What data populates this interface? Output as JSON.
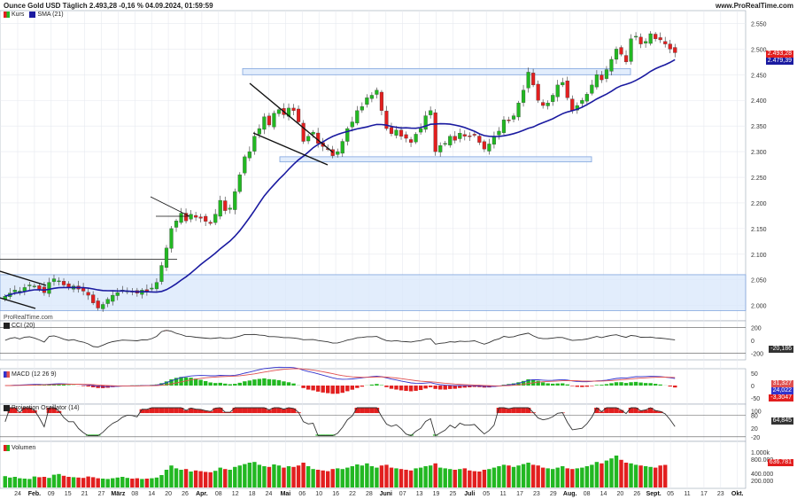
{
  "header": {
    "title": "Ounce Gold USD Täglich 2.493,28 -0,16 % 04.09.2024, 01:59:59",
    "source": "www.ProRealTime.com",
    "watermark": "ProRealTime.com"
  },
  "legend": {
    "kurs": "Kurs",
    "sma": "SMA (21)",
    "cci": "CCI (20)",
    "macd": "MACD (12 26 9)",
    "proj": "Projection Oszillator (14)",
    "vol": "Volumen"
  },
  "colors": {
    "up": "#22b822",
    "down": "#e21f1f",
    "sma": "#1a1aa0",
    "zone": "#dbe8fb",
    "zone_border": "#7fa4dd",
    "macd_line": "#3333cc",
    "signal_line": "#e05050"
  },
  "price_labels": {
    "last": "2.493,28",
    "sma": "2.479,39"
  },
  "indicator_labels": {
    "cci_last": "-20,186",
    "macd_a": "31,327",
    "macd_b": "24,022",
    "macd_c": "-3,3047",
    "proj_last": "64,845",
    "vol_last": "636.781"
  },
  "chart_data": {
    "type": "candlestick",
    "x_labels": [
      "24",
      "Feb.",
      "09",
      "15",
      "21",
      "27",
      "März",
      "08",
      "14",
      "20",
      "26",
      "Apr.",
      "08",
      "12",
      "18",
      "24",
      "Mai",
      "06",
      "10",
      "16",
      "22",
      "28",
      "Juni",
      "07",
      "13",
      "19",
      "25",
      "Juli",
      "05",
      "11",
      "17",
      "23",
      "29",
      "Aug.",
      "08",
      "14",
      "20",
      "26",
      "Sept.",
      "05",
      "11",
      "17",
      "23",
      "Okt."
    ],
    "price_axis": {
      "ticks": [
        "2.550",
        "2.500",
        "2.450",
        "2.400",
        "2.350",
        "2.300",
        "2.250",
        "2.200",
        "2.150",
        "2.100",
        "2.050",
        "2.000"
      ],
      "ylim": [
        1970,
        2575
      ]
    },
    "cci_axis": {
      "ticks": [
        "200",
        "0",
        "-200"
      ]
    },
    "macd_axis": {
      "ticks": [
        "50",
        "0",
        "-50"
      ]
    },
    "proj_axis": {
      "ticks": [
        "100",
        "80",
        "20",
        "-20"
      ]
    },
    "volume_axis": {
      "ticks": [
        "1.000k",
        "800.000",
        "400.000",
        "200.000"
      ]
    },
    "zones": [
      {
        "from": 2450,
        "to": 2462
      },
      {
        "from": 2280,
        "to": 2290
      },
      {
        "from": 1990,
        "to": 2060
      }
    ],
    "closes": [
      2018,
      2024,
      2030,
      2028,
      2035,
      2040,
      2038,
      2032,
      2025,
      2045,
      2052,
      2048,
      2040,
      2035,
      2038,
      2032,
      2028,
      2020,
      2005,
      1995,
      2002,
      2012,
      2020,
      2025,
      2030,
      2028,
      2026,
      2024,
      2030,
      2028,
      2034,
      2045,
      2078,
      2112,
      2150,
      2165,
      2180,
      2165,
      2178,
      2172,
      2170,
      2164,
      2160,
      2178,
      2205,
      2185,
      2190,
      2222,
      2255,
      2290,
      2300,
      2330,
      2345,
      2368,
      2352,
      2375,
      2382,
      2372,
      2385,
      2380,
      2358,
      2320,
      2330,
      2338,
      2316,
      2310,
      2305,
      2292,
      2300,
      2320,
      2345,
      2358,
      2380,
      2388,
      2405,
      2410,
      2420,
      2380,
      2345,
      2335,
      2342,
      2330,
      2326,
      2318,
      2334,
      2345,
      2370,
      2380,
      2300,
      2312,
      2316,
      2330,
      2322,
      2336,
      2330,
      2330,
      2332,
      2318,
      2305,
      2315,
      2330,
      2340,
      2362,
      2360,
      2370,
      2395,
      2420,
      2455,
      2430,
      2400,
      2390,
      2395,
      2410,
      2430,
      2435,
      2405,
      2380,
      2390,
      2400,
      2412,
      2430,
      2450,
      2440,
      2460,
      2480,
      2500,
      2490,
      2475,
      2520,
      2525,
      2510,
      2515,
      2530,
      2520,
      2518,
      2510,
      2500,
      2493
    ],
    "volumes": [
      320,
      280,
      300,
      260,
      250,
      240,
      310,
      290,
      300,
      270,
      360,
      380,
      330,
      300,
      290,
      280,
      270,
      310,
      290,
      260,
      250,
      240,
      260,
      280,
      300,
      270,
      250,
      260,
      240,
      250,
      260,
      280,
      350,
      500,
      620,
      540,
      500,
      520,
      450,
      480,
      460,
      440,
      430,
      470,
      560,
      520,
      500,
      580,
      620,
      660,
      700,
      720,
      640,
      600,
      580,
      650,
      620,
      560,
      600,
      580,
      620,
      700,
      600,
      520,
      500,
      480,
      460,
      520,
      540,
      520,
      560,
      600,
      650,
      620,
      680,
      600,
      560,
      620,
      640,
      560,
      540,
      520,
      500,
      480,
      540,
      560,
      600,
      620,
      680,
      560,
      540,
      520,
      500,
      520,
      540,
      480,
      460,
      450,
      500,
      520,
      560,
      600,
      640,
      620,
      580,
      620,
      660,
      700,
      640,
      620,
      560,
      540,
      520,
      560,
      600,
      540,
      520,
      540,
      560,
      600,
      640,
      720,
      680,
      760,
      820,
      900,
      780,
      700,
      680,
      640,
      620,
      600,
      580,
      560,
      620,
      637
    ]
  }
}
